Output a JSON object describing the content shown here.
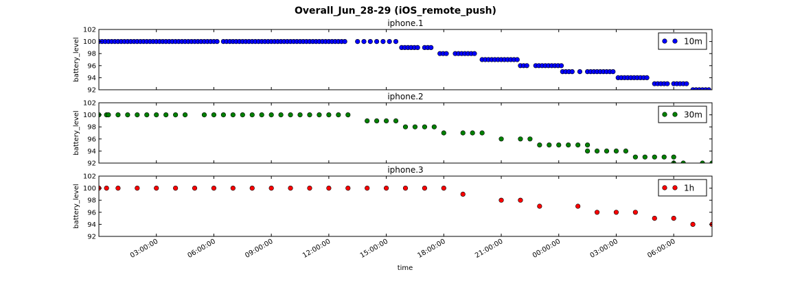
{
  "title": "Overall_Jun_28-29 (iOS_remote_push)",
  "xlabel": "time",
  "x_ticks": [
    "03:00:00",
    "06:00:00",
    "09:00:00",
    "12:00:00",
    "15:00:00",
    "18:00:00",
    "21:00:00",
    "00:00:00",
    "03:00:00",
    "06:00:00"
  ],
  "chart_data": [
    {
      "type": "scatter",
      "title": "iphone.1",
      "ylabel": "battery_level",
      "ylim": [
        92,
        102
      ],
      "y_ticks": [
        "92",
        "94",
        "96",
        "98",
        "100",
        "102"
      ],
      "x_unit": "hours since start of axis (tick 03:00:00 = 3)",
      "xlim": [
        0,
        32
      ],
      "legend": {
        "label": "10m",
        "placement": "top-right"
      },
      "color": "#0000ff",
      "segments": [
        {
          "x_start": 0.0,
          "x_end": 6.3,
          "step": 0.1667,
          "y": 100
        },
        {
          "x_start": 6.5,
          "x_end": 13.0,
          "step": 0.1667,
          "y": 100
        },
        {
          "x_start": 13.5,
          "x_end": 15.5,
          "step": 0.333,
          "y": 100
        },
        {
          "x_start": 15.8,
          "x_end": 16.8,
          "step": 0.1667,
          "y": 99
        },
        {
          "x_start": 17.0,
          "x_end": 17.5,
          "step": 0.1667,
          "y": 99
        },
        {
          "x_start": 17.8,
          "x_end": 18.3,
          "step": 0.1667,
          "y": 98
        },
        {
          "x_start": 18.6,
          "x_end": 19.7,
          "step": 0.1667,
          "y": 98
        },
        {
          "x_start": 20.0,
          "x_end": 21.9,
          "step": 0.1667,
          "y": 97
        },
        {
          "x_start": 22.0,
          "x_end": 22.5,
          "step": 0.1667,
          "y": 96
        },
        {
          "x_start": 22.8,
          "x_end": 24.2,
          "step": 0.1667,
          "y": 96
        },
        {
          "x_start": 24.2,
          "x_end": 24.8,
          "step": 0.1667,
          "y": 95
        },
        {
          "x_start": 25.1,
          "x_end": 25.1,
          "step": 1,
          "y": 95
        },
        {
          "x_start": 25.5,
          "x_end": 27.0,
          "step": 0.1667,
          "y": 95
        },
        {
          "x_start": 27.1,
          "x_end": 28.7,
          "step": 0.1667,
          "y": 94
        },
        {
          "x_start": 29.0,
          "x_end": 29.7,
          "step": 0.1667,
          "y": 93
        },
        {
          "x_start": 30.0,
          "x_end": 30.8,
          "step": 0.1667,
          "y": 93
        },
        {
          "x_start": 31.0,
          "x_end": 32.0,
          "step": 0.1667,
          "y": 92
        }
      ]
    },
    {
      "type": "scatter",
      "title": "iphone.2",
      "ylabel": "battery_level",
      "ylim": [
        92,
        102
      ],
      "y_ticks": [
        "92",
        "94",
        "96",
        "98",
        "100",
        "102"
      ],
      "xlim": [
        0,
        32
      ],
      "legend": {
        "label": "30m",
        "placement": "top-right"
      },
      "color": "#008000",
      "points": [
        [
          0.0,
          100
        ],
        [
          0.4,
          100
        ],
        [
          0.5,
          100
        ],
        [
          1.0,
          100
        ],
        [
          1.5,
          100
        ],
        [
          2.0,
          100
        ],
        [
          2.5,
          100
        ],
        [
          3.0,
          100
        ],
        [
          3.5,
          100
        ],
        [
          4.0,
          100
        ],
        [
          4.5,
          100
        ],
        [
          5.5,
          100
        ],
        [
          6.0,
          100
        ],
        [
          6.5,
          100
        ],
        [
          7.0,
          100
        ],
        [
          7.5,
          100
        ],
        [
          8.0,
          100
        ],
        [
          8.5,
          100
        ],
        [
          9.0,
          100
        ],
        [
          9.5,
          100
        ],
        [
          10.0,
          100
        ],
        [
          10.5,
          100
        ],
        [
          11.0,
          100
        ],
        [
          11.5,
          100
        ],
        [
          12.0,
          100
        ],
        [
          12.5,
          100
        ],
        [
          13.0,
          100
        ],
        [
          14.0,
          99
        ],
        [
          14.5,
          99
        ],
        [
          15.0,
          99
        ],
        [
          15.5,
          99
        ],
        [
          16.0,
          98
        ],
        [
          16.5,
          98
        ],
        [
          17.0,
          98
        ],
        [
          17.5,
          98
        ],
        [
          18.0,
          97
        ],
        [
          19.0,
          97
        ],
        [
          19.5,
          97
        ],
        [
          20.0,
          97
        ],
        [
          21.0,
          96
        ],
        [
          22.0,
          96
        ],
        [
          22.5,
          96
        ],
        [
          23.0,
          95
        ],
        [
          23.5,
          95
        ],
        [
          24.0,
          95
        ],
        [
          24.5,
          95
        ],
        [
          25.0,
          95
        ],
        [
          25.5,
          95
        ],
        [
          25.5,
          94
        ],
        [
          26.0,
          94
        ],
        [
          26.5,
          94
        ],
        [
          27.0,
          94
        ],
        [
          27.5,
          94
        ],
        [
          28.0,
          93
        ],
        [
          28.5,
          93
        ],
        [
          29.0,
          93
        ],
        [
          29.5,
          93
        ],
        [
          30.0,
          93
        ],
        [
          30.0,
          92
        ],
        [
          30.5,
          92
        ],
        [
          31.5,
          92
        ],
        [
          32.0,
          92
        ]
      ]
    },
    {
      "type": "scatter",
      "title": "iphone.3",
      "ylabel": "battery_level",
      "ylim": [
        92,
        102
      ],
      "y_ticks": [
        "92",
        "94",
        "96",
        "98",
        "100",
        "102"
      ],
      "xlim": [
        0,
        32
      ],
      "legend": {
        "label": "1h",
        "placement": "top-right"
      },
      "color": "#ff0000",
      "points": [
        [
          0.0,
          100
        ],
        [
          0.4,
          100
        ],
        [
          1.0,
          100
        ],
        [
          2.0,
          100
        ],
        [
          3.0,
          100
        ],
        [
          4.0,
          100
        ],
        [
          5.0,
          100
        ],
        [
          6.0,
          100
        ],
        [
          7.0,
          100
        ],
        [
          8.0,
          100
        ],
        [
          9.0,
          100
        ],
        [
          10.0,
          100
        ],
        [
          11.0,
          100
        ],
        [
          12.0,
          100
        ],
        [
          13.0,
          100
        ],
        [
          14.0,
          100
        ],
        [
          15.0,
          100
        ],
        [
          16.0,
          100
        ],
        [
          17.0,
          100
        ],
        [
          18.0,
          100
        ],
        [
          19.0,
          99
        ],
        [
          21.0,
          98
        ],
        [
          22.0,
          98
        ],
        [
          23.0,
          97
        ],
        [
          25.0,
          97
        ],
        [
          26.0,
          96
        ],
        [
          27.0,
          96
        ],
        [
          28.0,
          96
        ],
        [
          29.0,
          95
        ],
        [
          30.0,
          95
        ],
        [
          31.0,
          94
        ],
        [
          32.0,
          94
        ]
      ]
    }
  ]
}
